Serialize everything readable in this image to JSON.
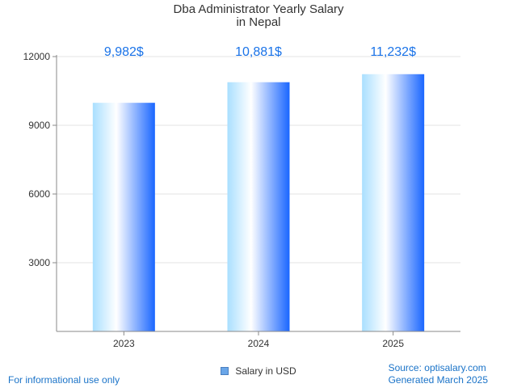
{
  "chart_data": {
    "type": "bar",
    "title_lines": [
      "Dba Administrator Yearly Salary",
      "in Nepal"
    ],
    "categories": [
      "2023",
      "2024",
      "2025"
    ],
    "series": [
      {
        "name": "Salary in USD",
        "values": [
          9982,
          10881,
          11232
        ]
      }
    ],
    "data_labels": [
      "9,982$",
      "10,881$",
      "11,232$"
    ],
    "y_ticks": [
      3000,
      6000,
      9000,
      12000
    ],
    "y_tick_labels": [
      "3000",
      "6000",
      "9000",
      "12000"
    ],
    "ylim": [
      0,
      12000
    ],
    "grid": true,
    "legend_position": "bottom"
  },
  "footer": {
    "disclaimer": "For informational use only",
    "source": "Source: optisalary.com",
    "generated": "Generated March 2025"
  },
  "colors": {
    "bar_light": "#bfe9ff",
    "bar_white": "#ffffff",
    "bar_dark": "#1a6cff",
    "data_label": "#1a73e8",
    "grid": "#e3e3e3",
    "axis": "#888888"
  }
}
